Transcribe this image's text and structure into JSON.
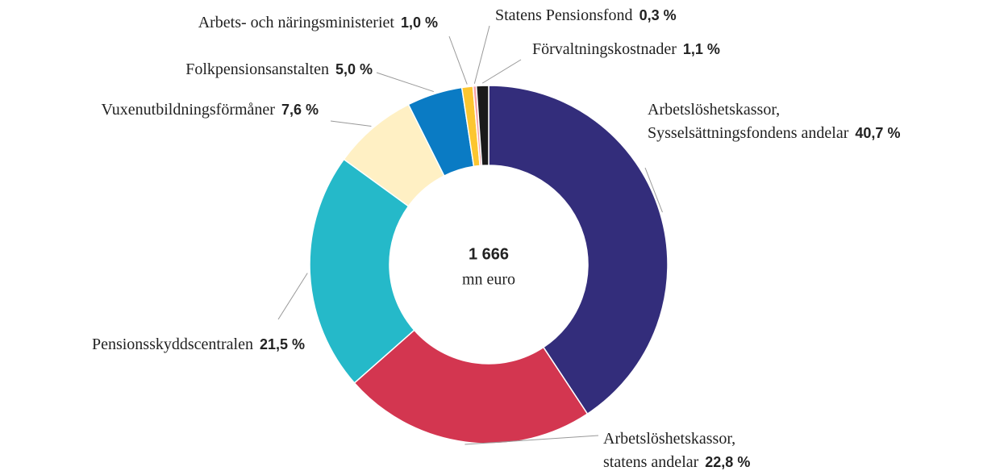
{
  "chart_data": {
    "type": "donut",
    "categories": [
      "Arbetslöshetskassor, Sysselsättningsfondens andelar",
      "Arbetslöshetskassor, statens andelar",
      "Pensionsskyddscentralen",
      "Vuxenutbildningsförmåner",
      "Folkpensionsanstalten",
      "Arbets- och näringsministeriet",
      "Statens Pensionsfond",
      "Förvaltningskostnader"
    ],
    "values": [
      40.7,
      22.8,
      21.5,
      7.6,
      5.0,
      1.0,
      0.3,
      1.1
    ],
    "value_labels": [
      "40,7 %",
      "22,8 %",
      "21,5 %",
      "7,6 %",
      "5,0 %",
      "1,0 %",
      "0,3 %",
      "1,1 %"
    ],
    "colors": [
      "#332d7b",
      "#d33650",
      "#25b9c9",
      "#fff0c4",
      "#0a7bc4",
      "#fcc630",
      "#f4a3a8",
      "#1a1a1a"
    ],
    "center_text": [
      "1 666",
      "mn euro"
    ]
  }
}
